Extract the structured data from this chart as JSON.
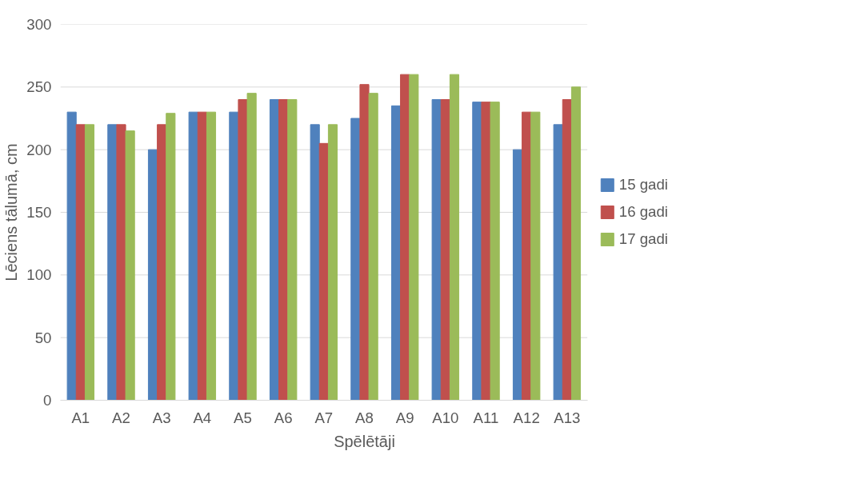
{
  "chart_data": {
    "type": "bar",
    "xlabel": "Spēlētāji",
    "ylabel": "Lēciens tālumā, cm",
    "categories": [
      "A1",
      "A2",
      "A3",
      "A4",
      "A5",
      "A6",
      "A7",
      "A8",
      "A9",
      "A10",
      "A11",
      "A12",
      "A13"
    ],
    "series": [
      {
        "name": "15 gadi",
        "color": "#4f81bd",
        "values": [
          230,
          220,
          200,
          230,
          230,
          240,
          220,
          225,
          235,
          240,
          238,
          200,
          220
        ]
      },
      {
        "name": "16 gadi",
        "color": "#c0504d",
        "values": [
          220,
          220,
          220,
          230,
          240,
          240,
          205,
          252,
          260,
          240,
          238,
          230,
          240
        ]
      },
      {
        "name": "17 gadi",
        "color": "#9bbb59",
        "values": [
          220,
          215,
          229,
          230,
          245,
          240,
          220,
          245,
          260,
          260,
          238,
          230,
          250
        ]
      }
    ],
    "ylim": [
      0,
      300
    ],
    "yticks": [
      0,
      50,
      100,
      150,
      200,
      250,
      300
    ],
    "grid": "y",
    "legend": "right"
  }
}
